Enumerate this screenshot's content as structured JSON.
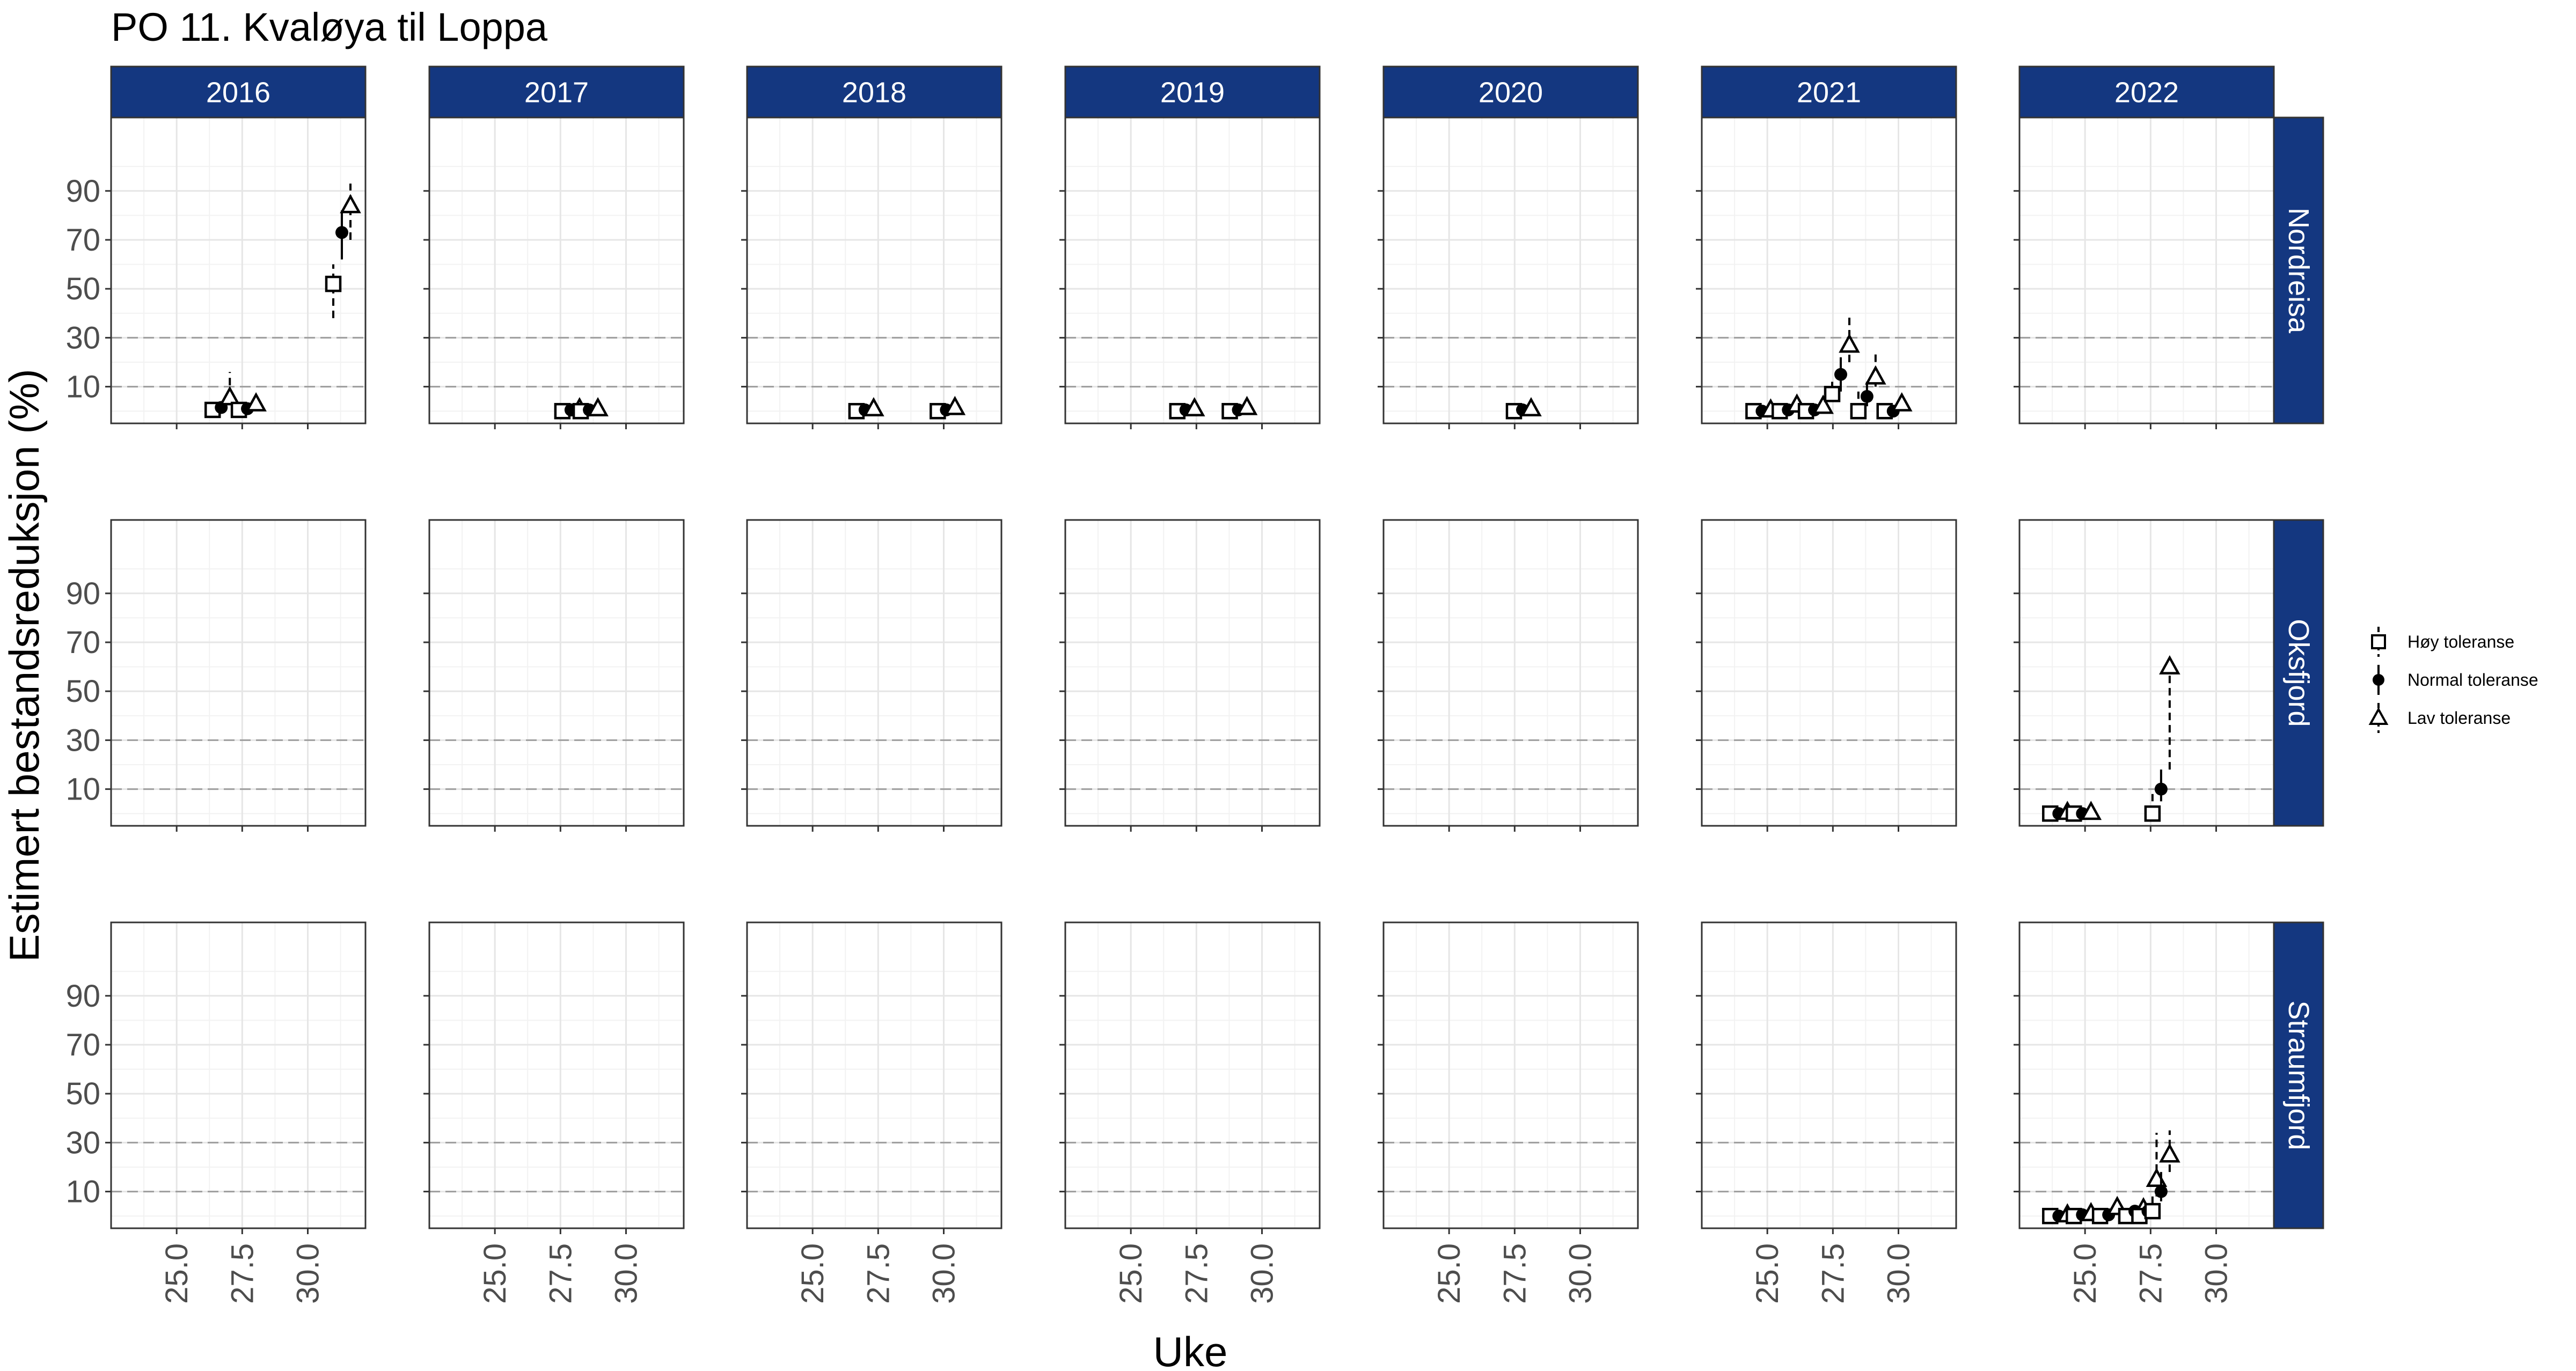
{
  "chart_data": {
    "type": "scatter",
    "title": "PO 11. Kvaløya til Loppa",
    "xlabel": "Uke",
    "ylabel": "Estimert bestandsreduksjon (%)",
    "xlim": [
      22.5,
      32.2
    ],
    "ylim": [
      -5,
      120
    ],
    "x_ticks": [
      25.0,
      27.5,
      30.0
    ],
    "x_tick_labels": [
      "25.0",
      "27.5",
      "30.0"
    ],
    "y_ticks": [
      10,
      30,
      50,
      70,
      90
    ],
    "y_tick_labels": [
      "10",
      "30",
      "50",
      "70",
      "90"
    ],
    "reference_lines": [
      10,
      30
    ],
    "grid": true,
    "columns": [
      "2016",
      "2017",
      "2018",
      "2019",
      "2020",
      "2021",
      "2022"
    ],
    "rows": [
      "Nordreisa",
      "Oksfjord",
      "Straumfjord"
    ],
    "strip_color": "#143780",
    "legend": {
      "position": "right",
      "entries": [
        {
          "label": "Høy toleranse",
          "shape": "square"
        },
        {
          "label": "Normal toleranse",
          "shape": "circle"
        },
        {
          "label": "Lav toleranse",
          "shape": "triangle"
        }
      ]
    },
    "panels": [
      {
        "row": "Nordreisa",
        "col": "2016",
        "points": [
          {
            "x": 26.7,
            "low": 0.5,
            "norm": 1.5,
            "high": 5.5,
            "hi_err": 16
          },
          {
            "x": 27.7,
            "low": 0.5,
            "norm": 1,
            "high": 3
          },
          {
            "x": 31.3,
            "low": 52,
            "low_err": [
              38,
              60
            ],
            "norm": 73,
            "norm_err": [
              62,
              82
            ],
            "high": 84,
            "high_err": [
              70,
              93
            ]
          }
        ]
      },
      {
        "row": "Nordreisa",
        "col": "2017",
        "points": [
          {
            "x": 27.9,
            "low": 0,
            "norm": 0.5,
            "high": 1
          },
          {
            "x": 28.6,
            "low": 0,
            "norm": 0.5,
            "high": 1
          }
        ]
      },
      {
        "row": "Nordreisa",
        "col": "2018",
        "points": [
          {
            "x": 27.0,
            "low": 0,
            "norm": 0.5,
            "high": 1
          },
          {
            "x": 30.1,
            "low": 0,
            "norm": 0.5,
            "high": 1.5
          }
        ]
      },
      {
        "row": "Nordreisa",
        "col": "2019",
        "points": [
          {
            "x": 27.1,
            "low": 0,
            "norm": 0.5,
            "high": 1
          },
          {
            "x": 29.1,
            "low": 0,
            "norm": 0.5,
            "high": 1.5
          }
        ]
      },
      {
        "row": "Nordreisa",
        "col": "2020",
        "points": [
          {
            "x": 27.8,
            "low": 0,
            "norm": 0.5,
            "high": 1
          }
        ]
      },
      {
        "row": "Nordreisa",
        "col": "2021",
        "points": [
          {
            "x": 24.8,
            "low": 0,
            "norm": 0,
            "high": 0.5
          },
          {
            "x": 25.8,
            "low": 0,
            "norm": 0.5,
            "high": 2.5
          },
          {
            "x": 26.8,
            "low": 0,
            "norm": 0.5,
            "high": 2
          },
          {
            "x": 27.8,
            "low": 7,
            "low_err": [
              5,
              12
            ],
            "norm": 15,
            "norm_err": [
              8,
              22
            ],
            "high": 27,
            "high_err": [
              20,
              39
            ]
          },
          {
            "x": 28.8,
            "low": 0,
            "low_err": [
              0,
              8
            ],
            "norm": 6,
            "norm_err": [
              2,
              12
            ],
            "high": 14,
            "high_err": [
              10,
              24
            ]
          },
          {
            "x": 29.8,
            "low": 0,
            "norm": 0,
            "high": 3
          }
        ]
      },
      {
        "row": "Nordreisa",
        "col": "2022",
        "points": []
      },
      {
        "row": "Oksfjord",
        "col": "2016",
        "points": []
      },
      {
        "row": "Oksfjord",
        "col": "2017",
        "points": []
      },
      {
        "row": "Oksfjord",
        "col": "2018",
        "points": []
      },
      {
        "row": "Oksfjord",
        "col": "2019",
        "points": []
      },
      {
        "row": "Oksfjord",
        "col": "2020",
        "points": []
      },
      {
        "row": "Oksfjord",
        "col": "2021",
        "points": []
      },
      {
        "row": "Oksfjord",
        "col": "2022",
        "points": [
          {
            "x": 24.0,
            "low": 0,
            "norm": 0,
            "high": 0.5
          },
          {
            "x": 24.9,
            "low": 0,
            "norm": 0,
            "high": 0.5
          },
          {
            "x": 27.9,
            "low": 0,
            "low_err": [
              0,
              8
            ],
            "norm": 10,
            "norm_err": [
              5,
              18
            ],
            "high": 60,
            "high_err": [
              18,
              62
            ]
          }
        ]
      },
      {
        "row": "Straumfjord",
        "col": "2016",
        "points": []
      },
      {
        "row": "Straumfjord",
        "col": "2017",
        "points": []
      },
      {
        "row": "Straumfjord",
        "col": "2018",
        "points": []
      },
      {
        "row": "Straumfjord",
        "col": "2019",
        "points": []
      },
      {
        "row": "Straumfjord",
        "col": "2020",
        "points": []
      },
      {
        "row": "Straumfjord",
        "col": "2021",
        "points": []
      },
      {
        "row": "Straumfjord",
        "col": "2022",
        "points": [
          {
            "x": 24.0,
            "low": 0,
            "norm": 0,
            "high": 0.5
          },
          {
            "x": 24.9,
            "low": 0,
            "norm": 0.5,
            "high": 1
          },
          {
            "x": 25.9,
            "low": 0,
            "norm": 0.5,
            "high": 3.5
          },
          {
            "x": 26.9,
            "low": 0,
            "norm": 2,
            "high": 3
          },
          {
            "x": 27.4,
            "low": 0,
            "norm": 2,
            "high": 15,
            "high_err": [
              8,
              34
            ]
          },
          {
            "x": 27.9,
            "low": 2,
            "low_err": [
              0,
              8
            ],
            "norm": 10,
            "norm_err": [
              6,
              18
            ],
            "high": 25,
            "high_err": [
              18,
              35
            ]
          }
        ]
      }
    ]
  }
}
